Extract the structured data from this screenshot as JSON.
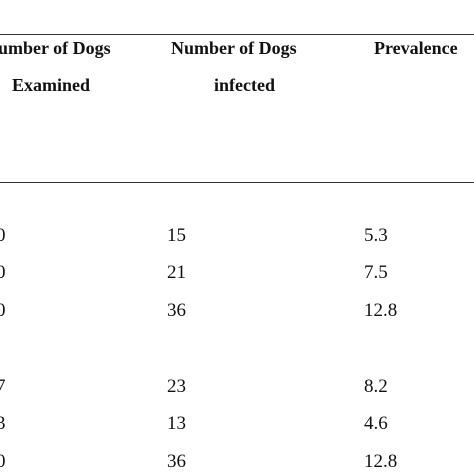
{
  "table": {
    "headers": [
      {
        "line1": "umber of Dogs",
        "line2": "Examined"
      },
      {
        "line1": "Number of Dogs",
        "line2": "infected"
      },
      {
        "line1": "Prevalence",
        "line2": ""
      }
    ],
    "rows": [
      {
        "examined": "0",
        "infected": "15",
        "prevalence": "5.3"
      },
      {
        "examined": "0",
        "infected": "21",
        "prevalence": "7.5"
      },
      {
        "examined": "0",
        "infected": "36",
        "prevalence": "12.8"
      },
      {
        "examined": "7",
        "infected": "23",
        "prevalence": "8.2"
      },
      {
        "examined": "3",
        "infected": "13",
        "prevalence": "4.6"
      },
      {
        "examined": "0",
        "infected": "36",
        "prevalence": "12.8"
      }
    ]
  }
}
